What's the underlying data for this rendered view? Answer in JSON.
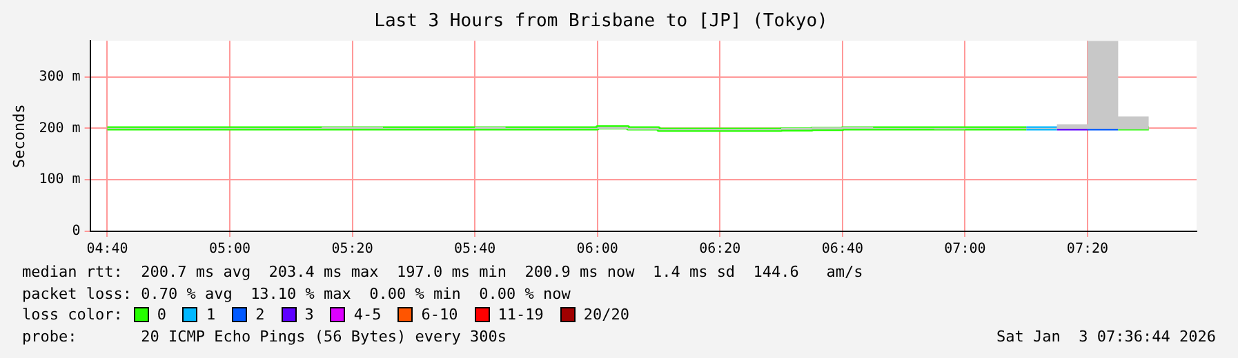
{
  "chart_data": {
    "type": "step",
    "title": "Last 3 Hours from Brisbane to [JP] (Tokyo)",
    "ylabel": "Seconds",
    "x": [
      4.6667,
      4.75,
      4.8333,
      4.9167,
      5,
      5.0833,
      5.1667,
      5.25,
      5.3333,
      5.4167,
      5.5,
      5.5833,
      5.6667,
      5.75,
      5.8333,
      5.9167,
      6,
      6.0833,
      6.1667,
      6.25,
      6.3333,
      6.4167,
      6.5,
      6.5833,
      6.6667,
      6.75,
      6.8333,
      6.9167,
      7,
      7.0833,
      7.1667,
      7.25,
      7.3333,
      7.4167,
      7.5
    ],
    "xlim": [
      4.62,
      7.63
    ],
    "xticks": [
      {
        "value": 4.6667,
        "label": "04:40"
      },
      {
        "value": 5,
        "label": "05:00"
      },
      {
        "value": 5.3333,
        "label": "05:20"
      },
      {
        "value": 5.6667,
        "label": "05:40"
      },
      {
        "value": 6,
        "label": "06:00"
      },
      {
        "value": 6.3333,
        "label": "06:20"
      },
      {
        "value": 6.6667,
        "label": "06:40"
      },
      {
        "value": 7,
        "label": "07:00"
      },
      {
        "value": 7.3333,
        "label": "07:20"
      }
    ],
    "ylim": [
      0,
      370
    ],
    "yticks": [
      {
        "value": 0,
        "label": "0"
      },
      {
        "value": 100,
        "label": "100 m"
      },
      {
        "value": 200,
        "label": "200 m"
      },
      {
        "value": 300,
        "label": "300 m"
      }
    ],
    "grid": true,
    "legend": "bottom",
    "legend_title": "loss color:",
    "marker": "none",
    "line_style": "solid",
    "series": [
      {
        "color": "#26ff00",
        "values": [
          200,
          200,
          200,
          200,
          200,
          200,
          200,
          200,
          200,
          200,
          200,
          200,
          200,
          200,
          200,
          200,
          202,
          200,
          197,
          197,
          197,
          197,
          198,
          199,
          200,
          200,
          200,
          200,
          200,
          200,
          200,
          null,
          null,
          200,
          200
        ],
        "lower": [
          199,
          199,
          199,
          199,
          199,
          199,
          199,
          199,
          199,
          199,
          199,
          199,
          199,
          199,
          199,
          199,
          199,
          197,
          196,
          196,
          196,
          196,
          197,
          198,
          199,
          199,
          199,
          198,
          199,
          199,
          199,
          199,
          199,
          198,
          199
        ],
        "upper": [
          201,
          201,
          201,
          201,
          201,
          201,
          201,
          203,
          203,
          201,
          201,
          201,
          203,
          201,
          201,
          201,
          203,
          201,
          199,
          199,
          199,
          199,
          201,
          202,
          203,
          201,
          201,
          201,
          201,
          201,
          201,
          208,
          370,
          223,
          201
        ]
      },
      {
        "name": "0",
        "color": "#26ff00",
        "values": [
          null,
          null,
          null,
          null,
          null,
          null,
          null,
          null,
          null,
          null,
          null,
          null,
          null,
          null,
          null,
          null,
          null,
          null,
          null,
          null,
          null,
          null,
          null,
          null,
          null,
          null,
          null,
          null,
          null,
          null,
          null,
          null,
          null,
          null,
          null
        ]
      },
      {
        "name": "1",
        "color": "#00b8ff",
        "values": [
          null,
          null,
          null,
          null,
          null,
          null,
          null,
          null,
          null,
          null,
          null,
          null,
          null,
          null,
          null,
          null,
          null,
          null,
          null,
          null,
          null,
          null,
          null,
          null,
          null,
          null,
          null,
          null,
          null,
          null,
          200,
          200,
          null,
          null,
          null
        ]
      },
      {
        "name": "2",
        "color": "#0059ff",
        "values": [
          null,
          null,
          null,
          null,
          null,
          null,
          null,
          null,
          null,
          null,
          null,
          null,
          null,
          null,
          null,
          null,
          null,
          null,
          null,
          null,
          null,
          null,
          null,
          null,
          null,
          null,
          null,
          null,
          null,
          null,
          null,
          null,
          200,
          200,
          null
        ]
      },
      {
        "name": "3",
        "color": "#5e00ff",
        "values": [
          null,
          null,
          null,
          null,
          null,
          null,
          null,
          null,
          null,
          null,
          null,
          null,
          null,
          null,
          null,
          null,
          null,
          null,
          null,
          null,
          null,
          null,
          null,
          null,
          null,
          null,
          null,
          null,
          null,
          null,
          null,
          200,
          200,
          null,
          null
        ]
      },
      {
        "name": "4-5",
        "color": "#dd00ff",
        "values": [
          null,
          null,
          null,
          null,
          null,
          null,
          null,
          null,
          null,
          null,
          null,
          null,
          null,
          null,
          null,
          null,
          null,
          null,
          null,
          null,
          null,
          null,
          null,
          null,
          null,
          null,
          null,
          null,
          null,
          null,
          null,
          null,
          null,
          null,
          null
        ]
      },
      {
        "name": "6-10",
        "color": "#ff5500",
        "values": [
          null,
          null,
          null,
          null,
          null,
          null,
          null,
          null,
          null,
          null,
          null,
          null,
          null,
          null,
          null,
          null,
          null,
          null,
          null,
          null,
          null,
          null,
          null,
          null,
          null,
          null,
          null,
          null,
          null,
          null,
          null,
          null,
          null,
          null,
          null
        ]
      },
      {
        "name": "11-19",
        "color": "#ff0000",
        "values": [
          null,
          null,
          null,
          null,
          null,
          null,
          null,
          null,
          null,
          null,
          null,
          null,
          null,
          null,
          null,
          null,
          null,
          null,
          null,
          null,
          null,
          null,
          null,
          null,
          null,
          null,
          null,
          null,
          null,
          null,
          null,
          null,
          null,
          null,
          null
        ]
      },
      {
        "name": "20/20",
        "color": "#a00000",
        "values": [
          null,
          null,
          null,
          null,
          null,
          null,
          null,
          null,
          null,
          null,
          null,
          null,
          null,
          null,
          null,
          null,
          null,
          null,
          null,
          null,
          null,
          null,
          null,
          null,
          null,
          null,
          null,
          null,
          null,
          null,
          null,
          null,
          null,
          null,
          null
        ]
      }
    ],
    "annotations": [
      "median rtt:  200.7 ms avg  203.4 ms max  197.0 ms min  200.9 ms now  1.4 ms sd  144.6   am/s",
      "packet loss: 0.70 % avg  13.10 % max  0.00 % min  0.00 % now",
      "probe:       20 ICMP Echo Pings (56 Bytes) every 300s",
      "Sat Jan  3 07:36:44 2026"
    ]
  }
}
